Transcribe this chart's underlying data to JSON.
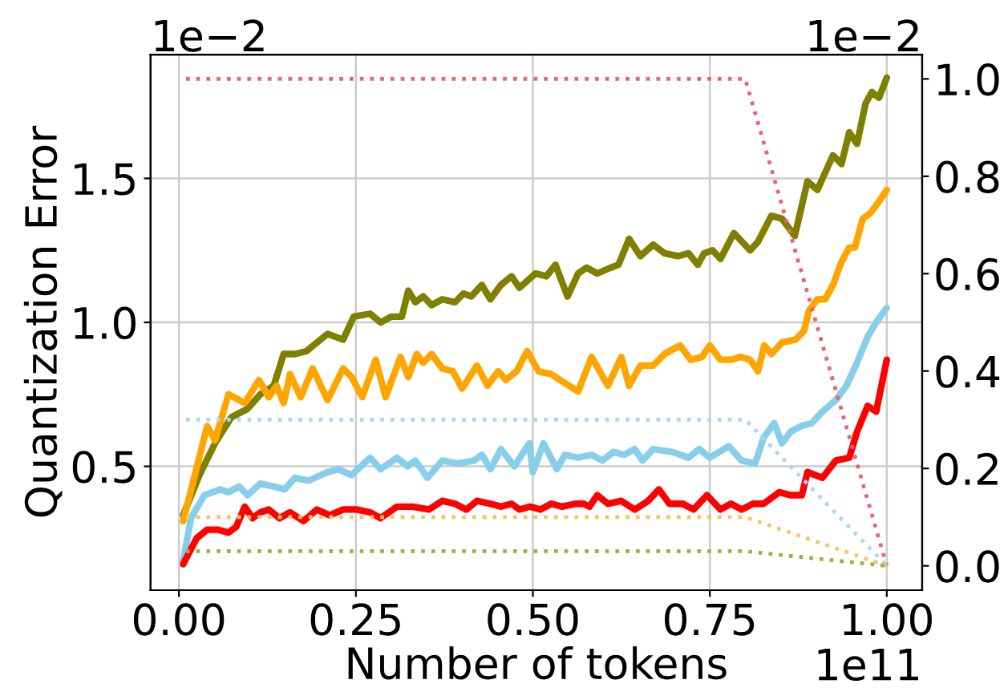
{
  "chart_data": {
    "type": "line",
    "xlabel": "Number of tokens",
    "ylabel": "Quantization Error",
    "annotations": [
      "1e−2",
      "1e−2",
      "1e11"
    ],
    "xlim": [
      -0.04,
      1.05
    ],
    "xticks": [
      {
        "value": 0.0,
        "label": "0.00"
      },
      {
        "value": 0.25,
        "label": "0.25"
      },
      {
        "value": 0.5,
        "label": "0.50"
      },
      {
        "value": 0.75,
        "label": "0.75"
      },
      {
        "value": 1.0,
        "label": "1.00"
      }
    ],
    "ylim": [
      0.07,
      1.93
    ],
    "yticks": [
      {
        "value": 0.5,
        "label": "0.5"
      },
      {
        "value": 1.0,
        "label": "1.0"
      },
      {
        "value": 1.5,
        "label": "1.5"
      }
    ],
    "y2lim": [
      -0.05,
      1.05
    ],
    "y2ticks": [
      {
        "value": 0.0,
        "label": "0.0"
      },
      {
        "value": 0.2,
        "label": "0.2"
      },
      {
        "value": 0.4,
        "label": "0.4"
      },
      {
        "value": 0.6,
        "label": "0.6"
      },
      {
        "value": 0.8,
        "label": "0.8"
      },
      {
        "value": 1.0,
        "label": "1.0"
      }
    ],
    "grid": true,
    "line_style": "solid",
    "series": [
      {
        "color": "#808000",
        "x": [
          0.006,
          0.029,
          0.051,
          0.074,
          0.097,
          0.115,
          0.134,
          0.148,
          0.164,
          0.18,
          0.21,
          0.232,
          0.247,
          0.27,
          0.285,
          0.3,
          0.315,
          0.324,
          0.334,
          0.345,
          0.357,
          0.372,
          0.39,
          0.402,
          0.413,
          0.428,
          0.44,
          0.455,
          0.47,
          0.481,
          0.504,
          0.519,
          0.532,
          0.549,
          0.564,
          0.576,
          0.591,
          0.61,
          0.621,
          0.636,
          0.652,
          0.67,
          0.686,
          0.705,
          0.72,
          0.733,
          0.742,
          0.754,
          0.765,
          0.784,
          0.807,
          0.818,
          0.837,
          0.852,
          0.87,
          0.888,
          0.902,
          0.924,
          0.936,
          0.947,
          0.958,
          0.97,
          0.979,
          0.989,
          1.0
        ],
        "values": [
          0.33,
          0.47,
          0.58,
          0.67,
          0.7,
          0.75,
          0.78,
          0.89,
          0.89,
          0.9,
          0.96,
          0.94,
          1.02,
          1.03,
          1.0,
          1.02,
          1.02,
          1.11,
          1.07,
          1.09,
          1.06,
          1.08,
          1.07,
          1.1,
          1.09,
          1.13,
          1.08,
          1.13,
          1.16,
          1.12,
          1.17,
          1.16,
          1.2,
          1.09,
          1.17,
          1.19,
          1.17,
          1.19,
          1.2,
          1.29,
          1.23,
          1.27,
          1.24,
          1.23,
          1.24,
          1.2,
          1.24,
          1.25,
          1.22,
          1.31,
          1.25,
          1.28,
          1.37,
          1.36,
          1.3,
          1.49,
          1.46,
          1.58,
          1.55,
          1.66,
          1.62,
          1.76,
          1.8,
          1.78,
          1.85
        ]
      },
      {
        "color": "#ffa500",
        "x": [
          0.006,
          0.04,
          0.051,
          0.07,
          0.093,
          0.113,
          0.127,
          0.138,
          0.148,
          0.157,
          0.172,
          0.189,
          0.21,
          0.232,
          0.244,
          0.259,
          0.278,
          0.292,
          0.313,
          0.324,
          0.336,
          0.345,
          0.357,
          0.372,
          0.387,
          0.4,
          0.421,
          0.436,
          0.451,
          0.462,
          0.477,
          0.492,
          0.508,
          0.526,
          0.545,
          0.564,
          0.583,
          0.606,
          0.625,
          0.636,
          0.652,
          0.67,
          0.686,
          0.708,
          0.723,
          0.739,
          0.75,
          0.765,
          0.78,
          0.794,
          0.807,
          0.818,
          0.827,
          0.837,
          0.852,
          0.871,
          0.883,
          0.89,
          0.902,
          0.913,
          0.924,
          0.936,
          0.947,
          0.955,
          0.966,
          0.977,
          0.989,
          1.0
        ],
        "values": [
          0.31,
          0.64,
          0.59,
          0.75,
          0.72,
          0.8,
          0.74,
          0.78,
          0.72,
          0.82,
          0.74,
          0.84,
          0.73,
          0.84,
          0.81,
          0.74,
          0.87,
          0.74,
          0.88,
          0.81,
          0.89,
          0.86,
          0.89,
          0.84,
          0.83,
          0.77,
          0.85,
          0.78,
          0.83,
          0.8,
          0.83,
          0.9,
          0.83,
          0.82,
          0.79,
          0.76,
          0.88,
          0.78,
          0.88,
          0.78,
          0.85,
          0.85,
          0.89,
          0.92,
          0.87,
          0.88,
          0.92,
          0.87,
          0.87,
          0.88,
          0.87,
          0.83,
          0.92,
          0.89,
          0.93,
          0.94,
          0.97,
          1.04,
          1.08,
          1.08,
          1.13,
          1.21,
          1.26,
          1.26,
          1.36,
          1.38,
          1.42,
          1.46
        ]
      },
      {
        "color": "#87ceeb",
        "x": [
          0.006,
          0.017,
          0.036,
          0.059,
          0.07,
          0.085,
          0.097,
          0.115,
          0.134,
          0.149,
          0.164,
          0.183,
          0.21,
          0.225,
          0.244,
          0.27,
          0.285,
          0.308,
          0.323,
          0.334,
          0.351,
          0.372,
          0.394,
          0.417,
          0.428,
          0.44,
          0.455,
          0.474,
          0.495,
          0.5,
          0.515,
          0.534,
          0.545,
          0.564,
          0.583,
          0.598,
          0.614,
          0.629,
          0.644,
          0.655,
          0.67,
          0.697,
          0.72,
          0.735,
          0.75,
          0.777,
          0.795,
          0.814,
          0.826,
          0.841,
          0.852,
          0.864,
          0.879,
          0.894,
          0.909,
          0.928,
          0.943,
          0.958,
          0.973,
          0.985,
          1.0
        ],
        "values": [
          0.17,
          0.32,
          0.4,
          0.42,
          0.41,
          0.43,
          0.4,
          0.44,
          0.43,
          0.42,
          0.46,
          0.45,
          0.48,
          0.49,
          0.47,
          0.53,
          0.49,
          0.53,
          0.5,
          0.52,
          0.46,
          0.52,
          0.51,
          0.52,
          0.54,
          0.49,
          0.56,
          0.5,
          0.58,
          0.48,
          0.58,
          0.49,
          0.54,
          0.53,
          0.54,
          0.52,
          0.55,
          0.54,
          0.56,
          0.52,
          0.56,
          0.55,
          0.53,
          0.56,
          0.53,
          0.57,
          0.52,
          0.51,
          0.6,
          0.65,
          0.58,
          0.62,
          0.64,
          0.65,
          0.69,
          0.73,
          0.78,
          0.86,
          0.95,
          1.0,
          1.05
        ]
      },
      {
        "color": "#ff0000",
        "x": [
          0.006,
          0.025,
          0.04,
          0.055,
          0.07,
          0.081,
          0.093,
          0.104,
          0.115,
          0.127,
          0.142,
          0.157,
          0.176,
          0.195,
          0.213,
          0.232,
          0.251,
          0.27,
          0.285,
          0.308,
          0.33,
          0.353,
          0.372,
          0.39,
          0.406,
          0.421,
          0.44,
          0.455,
          0.47,
          0.481,
          0.496,
          0.511,
          0.526,
          0.541,
          0.56,
          0.572,
          0.58,
          0.591,
          0.606,
          0.625,
          0.644,
          0.663,
          0.678,
          0.693,
          0.712,
          0.727,
          0.746,
          0.765,
          0.78,
          0.795,
          0.811,
          0.826,
          0.848,
          0.864,
          0.88,
          0.888,
          0.909,
          0.928,
          0.947,
          0.958,
          0.973,
          0.985,
          1.0
        ],
        "values": [
          0.16,
          0.25,
          0.28,
          0.28,
          0.27,
          0.29,
          0.36,
          0.32,
          0.34,
          0.35,
          0.32,
          0.34,
          0.31,
          0.35,
          0.33,
          0.35,
          0.35,
          0.34,
          0.32,
          0.36,
          0.36,
          0.35,
          0.38,
          0.37,
          0.35,
          0.38,
          0.37,
          0.36,
          0.37,
          0.35,
          0.36,
          0.35,
          0.37,
          0.36,
          0.37,
          0.37,
          0.36,
          0.4,
          0.37,
          0.38,
          0.35,
          0.38,
          0.42,
          0.37,
          0.37,
          0.35,
          0.4,
          0.35,
          0.37,
          0.35,
          0.37,
          0.37,
          0.41,
          0.4,
          0.4,
          0.48,
          0.46,
          0.52,
          0.53,
          0.62,
          0.71,
          0.69,
          0.87
        ]
      },
      {
        "color": "#f0606e",
        "axis": "y2",
        "line_style": "dotted",
        "x": [
          0.01,
          0.8,
          1.0
        ],
        "values": [
          1.0,
          1.0,
          0.0
        ]
      },
      {
        "color": "#a8d8f0",
        "axis": "y2",
        "line_style": "dotted",
        "x": [
          0.01,
          0.8,
          1.0
        ],
        "values": [
          0.3,
          0.3,
          0.0
        ]
      },
      {
        "color": "#f5c46a",
        "axis": "y2",
        "line_style": "dotted",
        "x": [
          0.01,
          0.8,
          1.0
        ],
        "values": [
          0.1,
          0.1,
          0.0
        ]
      },
      {
        "color": "#a9a94a",
        "axis": "y2",
        "line_style": "dotted",
        "x": [
          0.01,
          0.8,
          1.0
        ],
        "values": [
          0.03,
          0.03,
          0.0
        ]
      }
    ]
  }
}
